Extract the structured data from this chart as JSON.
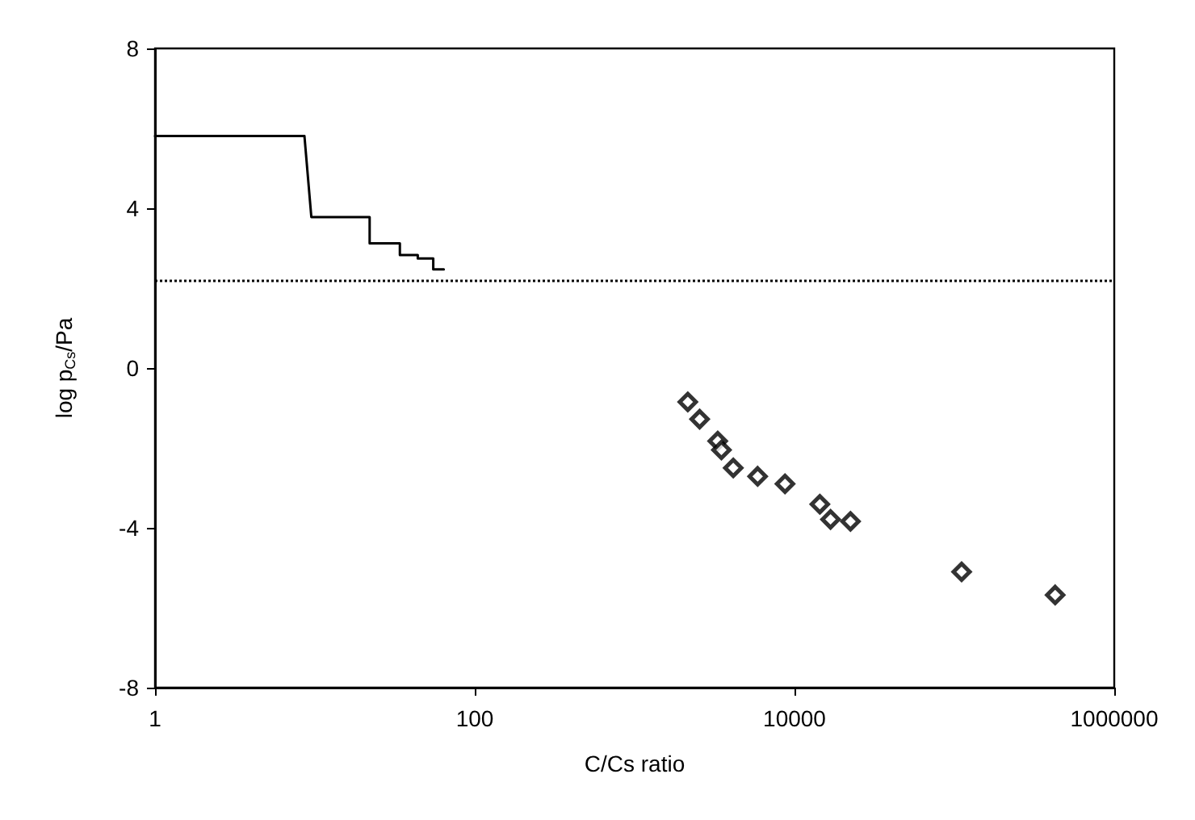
{
  "chart_data": {
    "type": "scatter",
    "xlabel": "C/Cs ratio",
    "ylabel": "log p$_{Cs}$/Pa",
    "log": "x",
    "xlim": [
      1,
      1000000
    ],
    "xticks": [
      1,
      100,
      10000,
      1000000
    ],
    "ylim": [
      -8,
      8
    ],
    "yticks": [
      -8,
      -4,
      0,
      4,
      8
    ],
    "series": [
      {
        "type": "line",
        "color": "#000000",
        "marker": "none",
        "line_style": "solid",
        "x": [
          1,
          8.6,
          9.5,
          22,
          22,
          34,
          34,
          44,
          44,
          55,
          55,
          64
        ],
        "values": [
          5.81,
          5.81,
          3.78,
          3.78,
          3.12,
          3.12,
          2.83,
          2.83,
          2.74,
          2.74,
          2.47,
          2.47
        ]
      },
      {
        "color": "#000000",
        "marker": "diamond",
        "x": [
          2150,
          2550,
          3310,
          3490,
          4140,
          5880,
          8720,
          14400,
          16800,
          22400,
          111000,
          427000
        ],
        "values": [
          -0.85,
          -1.28,
          -1.83,
          -2.05,
          -2.5,
          -2.71,
          -2.9,
          -3.41,
          -3.79,
          -3.84,
          -5.1,
          -5.68
        ]
      }
    ],
    "ref_lines": [
      {
        "axis": "y",
        "value": 2.19,
        "line_style": "dotted",
        "color": "#000000"
      }
    ]
  }
}
